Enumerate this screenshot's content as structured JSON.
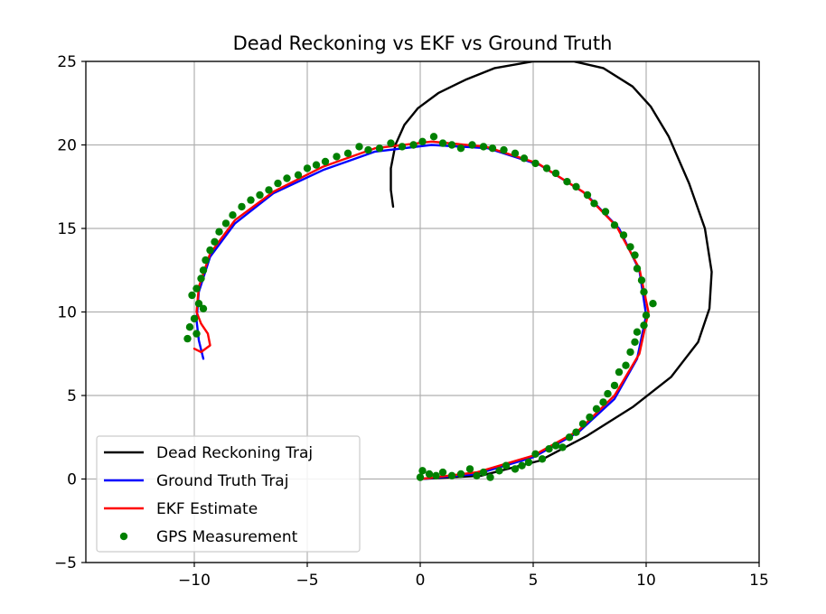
{
  "chart_data": {
    "type": "line",
    "title": "Dead Reckoning vs EKF vs Ground Truth",
    "xlabel": "",
    "ylabel": "",
    "xlim": [
      -14.8,
      15
    ],
    "ylim": [
      -5,
      25
    ],
    "xticks": [
      -10,
      -5,
      0,
      5,
      10,
      15
    ],
    "yticks": [
      -5,
      0,
      5,
      10,
      15,
      20,
      25
    ],
    "x_tick_labels": [
      "−10",
      "−5",
      "0",
      "5",
      "10",
      "15"
    ],
    "y_tick_labels": [
      "−5",
      "0",
      "5",
      "10",
      "15",
      "20",
      "25"
    ],
    "grid": true,
    "legend_position": "lower-left",
    "legend": [
      {
        "label": "Dead Reckoning Traj",
        "color": "#000000",
        "marker": "line"
      },
      {
        "label": "Ground Truth Traj",
        "color": "#0000ff",
        "marker": "line"
      },
      {
        "label": "EKF Estimate",
        "color": "#ff0000",
        "marker": "line"
      },
      {
        "label": "GPS Measurement",
        "color": "#008000",
        "marker": "dot"
      }
    ],
    "series": [
      {
        "name": "Dead Reckoning Traj",
        "color": "#000000",
        "kind": "line",
        "points": [
          [
            0,
            0
          ],
          [
            2.7,
            0.2
          ],
          [
            5.3,
            1.1
          ],
          [
            7.4,
            2.6
          ],
          [
            9.4,
            4.3
          ],
          [
            11.1,
            6.1
          ],
          [
            12.3,
            8.2
          ],
          [
            12.8,
            10.2
          ],
          [
            12.9,
            12.4
          ],
          [
            12.6,
            15.0
          ],
          [
            11.9,
            17.7
          ],
          [
            11.0,
            20.5
          ],
          [
            10.2,
            22.3
          ],
          [
            9.4,
            23.5
          ],
          [
            8.1,
            24.6
          ],
          [
            6.8,
            25.0
          ],
          [
            5.0,
            25.0
          ],
          [
            3.3,
            24.6
          ],
          [
            2.0,
            23.9
          ],
          [
            0.8,
            23.1
          ],
          [
            -0.1,
            22.2
          ],
          [
            -0.7,
            21.2
          ],
          [
            -1.1,
            20.0
          ],
          [
            -1.3,
            18.6
          ],
          [
            -1.3,
            17.3
          ],
          [
            -1.2,
            16.3
          ]
        ]
      },
      {
        "name": "Ground Truth Traj",
        "color": "#0000ff",
        "kind": "line",
        "points": [
          [
            0,
            0
          ],
          [
            2.5,
            0.3
          ],
          [
            5,
            1.3
          ],
          [
            7.0,
            2.8
          ],
          [
            8.6,
            4.8
          ],
          [
            9.6,
            7.2
          ],
          [
            10.0,
            9.8
          ],
          [
            9.7,
            12.5
          ],
          [
            8.8,
            15.0
          ],
          [
            7.3,
            17.1
          ],
          [
            5.3,
            18.8
          ],
          [
            3.0,
            19.8
          ],
          [
            0.5,
            20.0
          ],
          [
            -2,
            19.6
          ],
          [
            -4.3,
            18.5
          ],
          [
            -6.5,
            17.1
          ],
          [
            -8.2,
            15.3
          ],
          [
            -9.3,
            13.3
          ],
          [
            -9.8,
            11.2
          ],
          [
            -9.9,
            9.5
          ],
          [
            -9.8,
            8.3
          ],
          [
            -9.6,
            7.2
          ]
        ]
      },
      {
        "name": "EKF Estimate",
        "color": "#ff0000",
        "kind": "line",
        "points": [
          [
            0,
            0
          ],
          [
            2.5,
            0.4
          ],
          [
            5,
            1.4
          ],
          [
            7.0,
            2.9
          ],
          [
            8.6,
            5.0
          ],
          [
            9.7,
            7.5
          ],
          [
            10.1,
            10.0
          ],
          [
            9.7,
            12.6
          ],
          [
            8.7,
            15.1
          ],
          [
            7.2,
            17.2
          ],
          [
            5.2,
            18.9
          ],
          [
            2.9,
            19.9
          ],
          [
            0.5,
            20.2
          ],
          [
            -2,
            19.8
          ],
          [
            -4.3,
            18.7
          ],
          [
            -6.5,
            17.2
          ],
          [
            -8.2,
            15.5
          ],
          [
            -9.3,
            13.5
          ],
          [
            -9.8,
            11.5
          ],
          [
            -9.9,
            10.0
          ],
          [
            -9.7,
            9.3
          ],
          [
            -9.4,
            8.7
          ],
          [
            -9.3,
            8.0
          ],
          [
            -9.7,
            7.6
          ],
          [
            -10.0,
            7.8
          ]
        ]
      },
      {
        "name": "GPS Measurement",
        "color": "#008000",
        "kind": "scatter",
        "points": [
          [
            0.0,
            0.1
          ],
          [
            0.1,
            0.5
          ],
          [
            0.4,
            0.3
          ],
          [
            0.7,
            0.2
          ],
          [
            1.0,
            0.4
          ],
          [
            1.4,
            0.2
          ],
          [
            1.8,
            0.3
          ],
          [
            2.2,
            0.6
          ],
          [
            2.5,
            0.2
          ],
          [
            2.8,
            0.4
          ],
          [
            3.1,
            0.1
          ],
          [
            3.5,
            0.5
          ],
          [
            3.8,
            0.8
          ],
          [
            4.2,
            0.6
          ],
          [
            4.5,
            0.8
          ],
          [
            4.8,
            1.0
          ],
          [
            5.1,
            1.5
          ],
          [
            5.4,
            1.2
          ],
          [
            5.7,
            1.8
          ],
          [
            6.0,
            2.0
          ],
          [
            6.3,
            1.9
          ],
          [
            6.6,
            2.5
          ],
          [
            6.9,
            2.8
          ],
          [
            7.2,
            3.3
          ],
          [
            7.5,
            3.7
          ],
          [
            7.8,
            4.2
          ],
          [
            8.1,
            4.6
          ],
          [
            8.3,
            5.1
          ],
          [
            8.6,
            5.6
          ],
          [
            8.8,
            6.4
          ],
          [
            9.1,
            6.8
          ],
          [
            9.3,
            7.6
          ],
          [
            9.5,
            8.2
          ],
          [
            9.6,
            8.8
          ],
          [
            9.9,
            9.2
          ],
          [
            10.0,
            9.8
          ],
          [
            10.3,
            10.5
          ],
          [
            9.9,
            11.2
          ],
          [
            9.8,
            11.9
          ],
          [
            9.6,
            12.6
          ],
          [
            9.5,
            13.4
          ],
          [
            9.3,
            13.9
          ],
          [
            9.0,
            14.6
          ],
          [
            8.6,
            15.2
          ],
          [
            8.2,
            16.0
          ],
          [
            7.7,
            16.5
          ],
          [
            7.4,
            17.0
          ],
          [
            6.9,
            17.5
          ],
          [
            6.5,
            17.8
          ],
          [
            6.0,
            18.3
          ],
          [
            5.6,
            18.6
          ],
          [
            5.1,
            18.9
          ],
          [
            4.6,
            19.2
          ],
          [
            4.2,
            19.5
          ],
          [
            3.7,
            19.7
          ],
          [
            3.2,
            19.8
          ],
          [
            2.8,
            19.9
          ],
          [
            2.3,
            20.0
          ],
          [
            1.8,
            19.8
          ],
          [
            1.4,
            20.0
          ],
          [
            1.0,
            20.1
          ],
          [
            0.6,
            20.5
          ],
          [
            0.1,
            20.2
          ],
          [
            -0.3,
            20.0
          ],
          [
            -0.8,
            19.9
          ],
          [
            -1.3,
            20.1
          ],
          [
            -1.8,
            19.8
          ],
          [
            -2.3,
            19.7
          ],
          [
            -2.7,
            19.9
          ],
          [
            -3.2,
            19.5
          ],
          [
            -3.7,
            19.3
          ],
          [
            -4.2,
            19.0
          ],
          [
            -4.6,
            18.8
          ],
          [
            -5.0,
            18.6
          ],
          [
            -5.4,
            18.2
          ],
          [
            -5.9,
            18.0
          ],
          [
            -6.3,
            17.7
          ],
          [
            -6.7,
            17.3
          ],
          [
            -7.1,
            17.0
          ],
          [
            -7.5,
            16.7
          ],
          [
            -7.9,
            16.3
          ],
          [
            -8.3,
            15.8
          ],
          [
            -8.6,
            15.3
          ],
          [
            -8.9,
            14.8
          ],
          [
            -9.1,
            14.2
          ],
          [
            -9.3,
            13.7
          ],
          [
            -9.5,
            13.1
          ],
          [
            -9.6,
            12.5
          ],
          [
            -9.7,
            12.0
          ],
          [
            -9.9,
            11.4
          ],
          [
            -10.1,
            11.0
          ],
          [
            -9.8,
            10.5
          ],
          [
            -9.6,
            10.2
          ],
          [
            -10.0,
            9.6
          ],
          [
            -10.2,
            9.1
          ],
          [
            -9.9,
            8.7
          ],
          [
            -10.3,
            8.4
          ]
        ]
      }
    ]
  }
}
